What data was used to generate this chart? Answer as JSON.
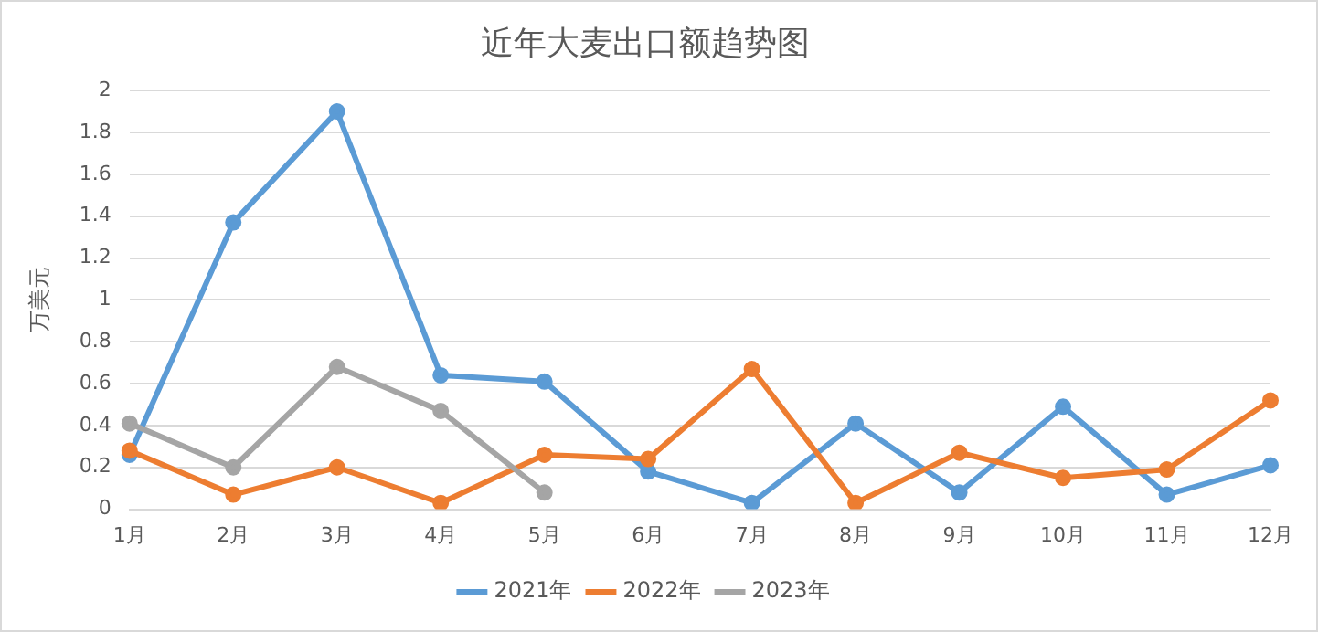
{
  "chart_data": {
    "type": "line",
    "title": "近年大麦出口额趋势图",
    "ylabel": "万美元",
    "categories": [
      "1月",
      "2月",
      "3月",
      "4月",
      "5月",
      "6月",
      "7月",
      "8月",
      "9月",
      "10月",
      "11月",
      "12月"
    ],
    "series": [
      {
        "name": "2021年",
        "color": "#5b9bd5",
        "values": [
          0.26,
          1.37,
          1.9,
          0.64,
          0.61,
          0.18,
          0.03,
          0.41,
          0.08,
          0.49,
          0.07,
          0.21
        ]
      },
      {
        "name": "2022年",
        "color": "#ed7d31",
        "values": [
          0.28,
          0.07,
          0.2,
          0.03,
          0.26,
          0.24,
          0.67,
          0.03,
          0.27,
          0.15,
          0.19,
          0.52
        ]
      },
      {
        "name": "2023年",
        "color": "#a5a5a5",
        "values": [
          0.41,
          0.2,
          0.68,
          0.47,
          0.08,
          null,
          null,
          null,
          null,
          null,
          null,
          null
        ]
      }
    ],
    "ylim": [
      0,
      2
    ],
    "yticks": [
      0,
      0.2,
      0.4,
      0.6,
      0.8,
      1,
      1.2,
      1.4,
      1.6,
      1.8,
      2
    ],
    "grid": "y",
    "legend": "bottom",
    "marker": "circle",
    "line_style": "solid"
  }
}
